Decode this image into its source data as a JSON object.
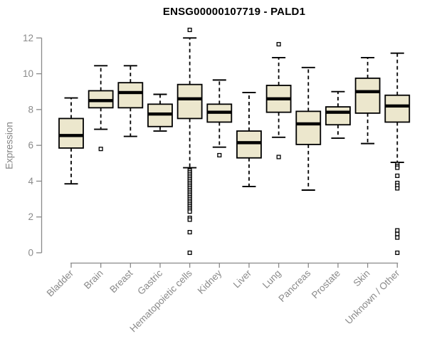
{
  "colors": {
    "background": "#ffffff",
    "box_fill": "#ece7cd",
    "box_stroke": "#000000",
    "median": "#000000",
    "whisker": "#000000",
    "outlier_fill": "#ffffff",
    "axis": "#8a8a8a",
    "tick_label": "#8a8a8a",
    "title": "#000000"
  },
  "chart_data": {
    "type": "boxplot",
    "title": "ENSG00000107719 - PALD1",
    "xlabel": "",
    "ylabel": "Expression",
    "ylim": [
      0,
      12
    ],
    "yticks": [
      0,
      2,
      4,
      6,
      8,
      10,
      12
    ],
    "grid": false,
    "x_label_rotation_deg": 45,
    "categories": [
      "Bladder",
      "Brain",
      "Breast",
      "Gastric",
      "Hematopoietic cells",
      "Kidney",
      "Liver",
      "Lung",
      "Pancreas",
      "Prostate",
      "Skin",
      "Unknown / Other"
    ],
    "series": [
      {
        "name": "Bladder",
        "whisker_low": 3.85,
        "q1": 5.85,
        "median": 6.55,
        "q3": 7.5,
        "whisker_high": 8.65,
        "outliers": []
      },
      {
        "name": "Brain",
        "whisker_low": 6.9,
        "q1": 8.1,
        "median": 8.5,
        "q3": 9.05,
        "whisker_high": 10.45,
        "outliers": [
          5.8
        ]
      },
      {
        "name": "Breast",
        "whisker_low": 6.5,
        "q1": 8.1,
        "median": 8.95,
        "q3": 9.5,
        "whisker_high": 10.45,
        "outliers": []
      },
      {
        "name": "Gastric",
        "whisker_low": 6.8,
        "q1": 7.05,
        "median": 7.75,
        "q3": 8.3,
        "whisker_high": 8.85,
        "outliers": []
      },
      {
        "name": "Hematopoietic cells",
        "whisker_low": 4.75,
        "q1": 7.5,
        "median": 8.6,
        "q3": 9.4,
        "whisker_high": 12.0,
        "outliers": [
          12.45,
          4.6,
          4.5,
          4.4,
          4.3,
          4.2,
          4.1,
          4.0,
          3.9,
          3.8,
          3.7,
          3.6,
          3.5,
          3.4,
          3.3,
          3.2,
          3.1,
          3.0,
          2.9,
          2.8,
          2.7,
          2.6,
          2.5,
          2.4,
          2.3,
          1.95,
          1.85,
          1.15,
          0.0
        ]
      },
      {
        "name": "Kidney",
        "whisker_low": 5.9,
        "q1": 7.3,
        "median": 7.85,
        "q3": 8.3,
        "whisker_high": 9.65,
        "outliers": [
          5.45
        ]
      },
      {
        "name": "Liver",
        "whisker_low": 3.7,
        "q1": 5.3,
        "median": 6.15,
        "q3": 6.8,
        "whisker_high": 8.95,
        "outliers": []
      },
      {
        "name": "Lung",
        "whisker_low": 6.45,
        "q1": 7.85,
        "median": 8.6,
        "q3": 9.35,
        "whisker_high": 10.9,
        "outliers": [
          11.65,
          5.35
        ]
      },
      {
        "name": "Pancreas",
        "whisker_low": 3.5,
        "q1": 6.05,
        "median": 7.2,
        "q3": 7.9,
        "whisker_high": 10.35,
        "outliers": []
      },
      {
        "name": "Prostate",
        "whisker_low": 6.4,
        "q1": 7.15,
        "median": 7.85,
        "q3": 8.15,
        "whisker_high": 9.0,
        "outliers": []
      },
      {
        "name": "Skin",
        "whisker_low": 6.1,
        "q1": 7.8,
        "median": 9.0,
        "q3": 9.75,
        "whisker_high": 10.9,
        "outliers": []
      },
      {
        "name": "Unknown / Other",
        "whisker_low": 5.05,
        "q1": 7.3,
        "median": 8.2,
        "q3": 8.8,
        "whisker_high": 11.15,
        "outliers": [
          4.95,
          4.85,
          4.75,
          4.3,
          3.9,
          3.75,
          3.6,
          1.25,
          1.05,
          0.85,
          0.0
        ]
      }
    ]
  }
}
